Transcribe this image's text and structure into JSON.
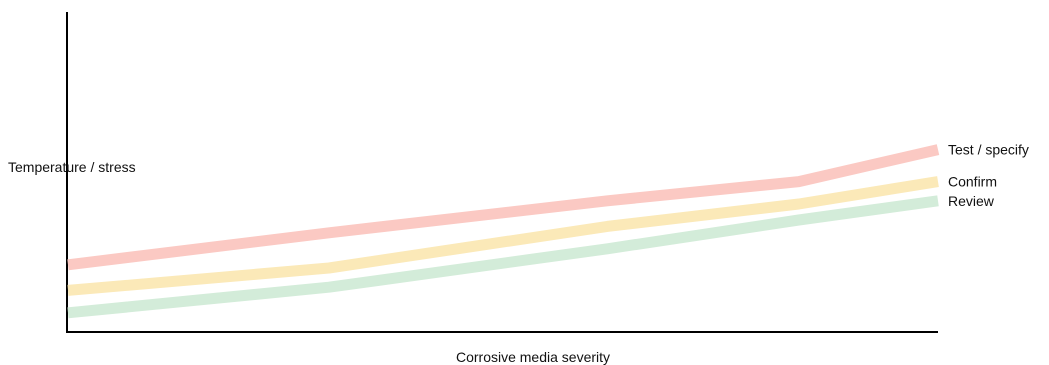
{
  "chart_data": {
    "type": "line",
    "title": "",
    "xlabel": "Corrosive media severity",
    "ylabel": "Temperature / stress",
    "x": [
      0,
      30,
      62,
      84,
      100
    ],
    "ylim": [
      0,
      100
    ],
    "xlim": [
      0,
      100
    ],
    "grid": false,
    "series": [
      {
        "name": "Test / specify",
        "color": "#fbc9c3",
        "values": [
          21,
          31,
          41,
          47,
          57
        ]
      },
      {
        "name": "Confirm",
        "color": "#fbe9b8",
        "values": [
          13,
          20,
          33,
          40,
          47
        ]
      },
      {
        "name": "Review",
        "color": "#d3ecd9",
        "values": [
          6,
          14,
          26,
          35,
          41
        ]
      }
    ]
  }
}
